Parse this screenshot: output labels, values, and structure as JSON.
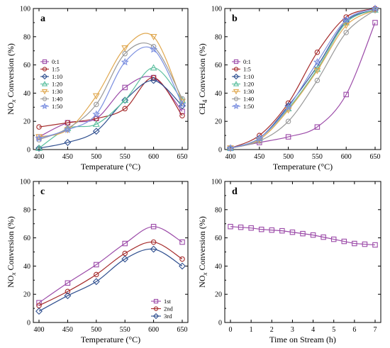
{
  "chart_data": [
    {
      "panel_label": "a",
      "type": "line",
      "xlabel": "Temperature (°C)",
      "ylabel_main": "NO",
      "ylabel_sub": "x",
      "ylabel_rest": " Conversion (%)",
      "xlim": [
        400,
        650
      ],
      "ylim": [
        0,
        100
      ],
      "xticks": [
        400,
        450,
        500,
        550,
        600,
        650
      ],
      "yticks": [
        0,
        20,
        40,
        60,
        80,
        100
      ],
      "legend_position": "top-left",
      "x": [
        400,
        450,
        500,
        550,
        600,
        650
      ],
      "series": [
        {
          "name": "0:1",
          "color": "#9b4aa8",
          "marker": "square",
          "values": [
            9,
            19,
            22,
            44,
            51,
            27
          ]
        },
        {
          "name": "1:5",
          "color": "#a52a2a",
          "marker": "circle",
          "values": [
            16,
            19,
            22,
            29,
            51,
            24
          ]
        },
        {
          "name": "1:10",
          "color": "#2f4f8f",
          "marker": "diamond",
          "values": [
            1,
            5,
            13,
            35,
            49,
            31
          ]
        },
        {
          "name": "1:20",
          "color": "#5cbf9f",
          "marker": "triangle-up",
          "values": [
            1,
            15,
            18,
            35,
            58,
            35
          ]
        },
        {
          "name": "1:30",
          "color": "#e0a850",
          "marker": "triangle-down",
          "values": [
            9,
            14,
            38,
            72,
            80,
            34
          ]
        },
        {
          "name": "1:40",
          "color": "#999999",
          "marker": "circle",
          "values": [
            7,
            15,
            32,
            68,
            73,
            36
          ]
        },
        {
          "name": "1:50",
          "color": "#7b8fe0",
          "marker": "star",
          "values": [
            8,
            14,
            25,
            62,
            71,
            32
          ]
        }
      ]
    },
    {
      "panel_label": "b",
      "type": "line",
      "xlabel": "Temperature (°C)",
      "ylabel_main": "CH",
      "ylabel_sub": "4",
      "ylabel_rest": " Conversion (%)",
      "xlim": [
        400,
        650
      ],
      "ylim": [
        0,
        100
      ],
      "xticks": [
        400,
        450,
        500,
        550,
        600,
        650
      ],
      "yticks": [
        0,
        20,
        40,
        60,
        80,
        100
      ],
      "legend_position": "top-left",
      "x": [
        400,
        450,
        500,
        550,
        600,
        650
      ],
      "series": [
        {
          "name": "0:1",
          "color": "#9b4aa8",
          "marker": "square",
          "values": [
            1,
            5,
            9,
            16,
            39,
            90
          ]
        },
        {
          "name": "1:5",
          "color": "#a52a2a",
          "marker": "circle",
          "values": [
            1,
            10,
            33,
            69,
            94,
            100
          ]
        },
        {
          "name": "1:10",
          "color": "#2f4f8f",
          "marker": "diamond",
          "values": [
            1,
            8,
            31,
            59,
            91,
            99
          ]
        },
        {
          "name": "1:20",
          "color": "#5cbf9f",
          "marker": "triangle-up",
          "values": [
            1,
            8,
            29,
            57,
            90,
            99
          ]
        },
        {
          "name": "1:30",
          "color": "#e0a850",
          "marker": "triangle-down",
          "values": [
            1,
            7,
            28,
            56,
            88,
            99
          ]
        },
        {
          "name": "1:40",
          "color": "#999999",
          "marker": "circle",
          "values": [
            1,
            6,
            20,
            49,
            83,
            99
          ]
        },
        {
          "name": "1:50",
          "color": "#7b8fe0",
          "marker": "star",
          "values": [
            1,
            8,
            30,
            62,
            92,
            100
          ]
        }
      ]
    },
    {
      "panel_label": "c",
      "type": "line",
      "xlabel": "Temperature (°C)",
      "ylabel_main": "NO",
      "ylabel_sub": "x",
      "ylabel_rest": " Conversion (%)",
      "xlim": [
        400,
        650
      ],
      "ylim": [
        0,
        100
      ],
      "xticks": [
        400,
        450,
        500,
        550,
        600,
        650
      ],
      "yticks": [
        0,
        20,
        40,
        60,
        80,
        100
      ],
      "legend_position": "bottom-right",
      "x": [
        400,
        450,
        500,
        550,
        600,
        650
      ],
      "series": [
        {
          "name": "1st",
          "color": "#9b4aa8",
          "marker": "square",
          "values": [
            14,
            28,
            41,
            56,
            68,
            57
          ]
        },
        {
          "name": "2nd",
          "color": "#a52a2a",
          "marker": "circle",
          "values": [
            12,
            22,
            34,
            49,
            57,
            45
          ]
        },
        {
          "name": "3rd",
          "color": "#2f4f8f",
          "marker": "diamond",
          "values": [
            8,
            19,
            29,
            45,
            52,
            40
          ]
        }
      ]
    },
    {
      "panel_label": "d",
      "type": "line",
      "xlabel": "Time on Stream (h)",
      "ylabel_main": "NO",
      "ylabel_sub": "x",
      "ylabel_rest": " Conversion (%)",
      "xlim": [
        0,
        7
      ],
      "ylim": [
        0,
        100
      ],
      "xticks": [
        0,
        1,
        2,
        3,
        4,
        5,
        6,
        7
      ],
      "yticks": [
        0,
        20,
        40,
        60,
        80,
        100
      ],
      "legend_position": "none",
      "x": [
        0,
        0.5,
        1,
        1.5,
        2,
        2.5,
        3,
        3.5,
        4,
        4.5,
        5,
        5.5,
        6,
        6.5,
        7
      ],
      "series": [
        {
          "name": "",
          "color": "#9b4aa8",
          "marker": "square",
          "values": [
            68,
            67.5,
            67,
            66,
            65.5,
            65,
            64,
            63,
            62,
            60.5,
            59,
            57.5,
            56,
            55.5,
            55
          ]
        }
      ]
    }
  ]
}
